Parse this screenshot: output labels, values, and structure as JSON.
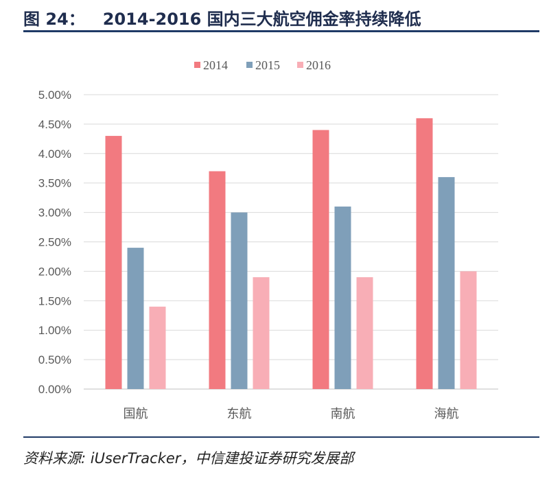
{
  "figure": {
    "number": "图 24：",
    "title": "2014-2016 国内三大航空佣金率持续降低",
    "source": "资料来源: iUserTracker，中信建投证券研究发展部"
  },
  "chart_data": {
    "type": "bar",
    "title": "2014-2016 国内三大航空佣金率持续降低",
    "categories": [
      "国航",
      "东航",
      "南航",
      "海航"
    ],
    "series": [
      {
        "name": "2014",
        "color": "#f27a80",
        "values": [
          4.3,
          3.7,
          4.4,
          4.6
        ]
      },
      {
        "name": "2015",
        "color": "#7f9fb9",
        "values": [
          2.4,
          3.0,
          3.1,
          3.6
        ]
      },
      {
        "name": "2016",
        "color": "#f8aeb6",
        "values": [
          1.4,
          1.9,
          1.9,
          2.0
        ]
      }
    ],
    "y_ticks": [
      "0.00%",
      "0.50%",
      "1.00%",
      "1.50%",
      "2.00%",
      "2.50%",
      "3.00%",
      "3.50%",
      "4.00%",
      "4.50%",
      "5.00%"
    ],
    "ylim": [
      0,
      5
    ],
    "y_unit": "%",
    "grid": true,
    "legend_position": "top"
  }
}
